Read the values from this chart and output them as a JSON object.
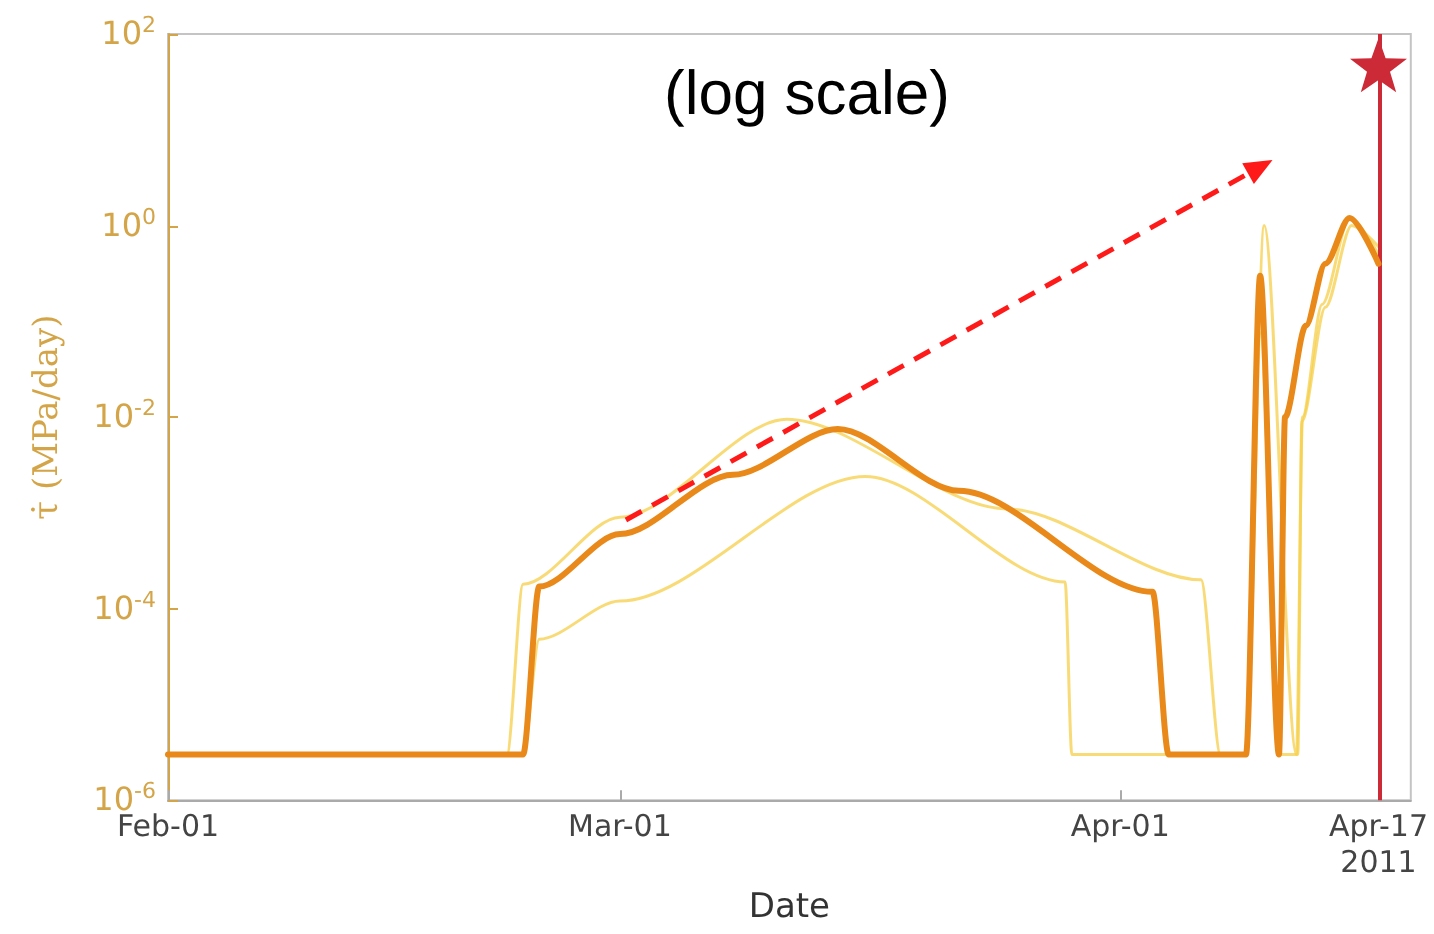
{
  "chart_data": {
    "type": "line",
    "title": "(log scale)",
    "xlabel": "Date",
    "ylabel": "τ̇ (MPa/day)",
    "log": true,
    "marker": "none",
    "xlim": [
      "2011-02-01",
      "2011-04-19"
    ],
    "ylim": [
      1e-06,
      100
    ],
    "xticks": [
      {
        "value": "2011-02-01",
        "label": "Feb-01"
      },
      {
        "value": "2011-03-01",
        "label": "Mar-01"
      },
      {
        "value": "2011-04-01",
        "label": "Apr-01"
      },
      {
        "value": "2011-04-17",
        "label": "Apr-17\n2011"
      }
    ],
    "yticks": [
      {
        "value": 1e-06,
        "label": "10$^{-6}$"
      },
      {
        "value": 0.0001,
        "label": "10$^{-4}$"
      },
      {
        "value": 0.01,
        "label": "10$^{-2}$"
      },
      {
        "value": 1,
        "label": "10$^{0}$"
      },
      {
        "value": 100,
        "label": "10$^{2}$"
      }
    ],
    "series": [
      {
        "color": "#f5cf4a",
        "x": [
          "2011-02-01",
          "2011-02-22",
          "2011-02-23",
          "2011-03-01",
          "2011-03-11T08:00",
          "2011-03-25",
          "2011-04-06",
          "2011-04-07T05:00",
          "2011-04-08T19:00",
          "2011-04-09T22:00",
          "2011-04-11T22:00",
          "2011-04-12T07:00",
          "2011-04-13T12:00",
          "2011-04-15T05:00",
          "2011-04-17"
        ],
        "values": [
          3e-06,
          3e-06,
          0.00018,
          0.0009,
          0.0095,
          0.0011,
          0.0002,
          3e-06,
          3e-06,
          1.0,
          3e-06,
          0.01,
          0.15,
          1.2,
          0.5
        ]
      },
      {
        "color": "#f5cf4a",
        "x": [
          "2011-02-01",
          "2011-02-23",
          "2011-02-24",
          "2011-03-01",
          "2011-03-16T05:00",
          "2011-03-28T14:00",
          "2011-03-29",
          "2011-04-08T19:00",
          "2011-04-09T16:00",
          "2011-04-10T22:00",
          "2011-04-12T00:00",
          "2011-04-12T06:00",
          "2011-04-13T17:00",
          "2011-04-15T08:00",
          "2011-04-17"
        ],
        "values": [
          3e-06,
          3e-06,
          4.8e-05,
          0.00012,
          0.0024,
          0.00019,
          3e-06,
          3e-06,
          0.076,
          3e-06,
          3e-06,
          0.009,
          0.14,
          1.0,
          0.6
        ]
      },
      {
        "color": "#e8891a",
        "x": [
          "2011-02-01",
          "2011-02-23",
          "2011-02-24",
          "2011-03-01",
          "2011-03-08",
          "2011-03-14T12:00",
          "2011-03-22",
          "2011-04-03",
          "2011-04-04",
          "2011-04-08T19:00",
          "2011-04-09T16:00",
          "2011-04-10T20:00",
          "2011-04-11T05:00",
          "2011-04-12T12:00",
          "2011-04-13T17:00",
          "2011-04-15T05:00",
          "2011-04-17"
        ],
        "values": [
          3e-06,
          3e-06,
          0.00017,
          0.0006,
          0.0025,
          0.0075,
          0.0017,
          0.00015,
          3e-06,
          3e-06,
          0.3,
          3e-06,
          0.01,
          0.09,
          0.4,
          1.2,
          0.4
        ]
      }
    ],
    "ref_lines": [
      {
        "axis": "x",
        "value": "2011-04-17",
        "color": "#cc2a36"
      }
    ]
  }
}
